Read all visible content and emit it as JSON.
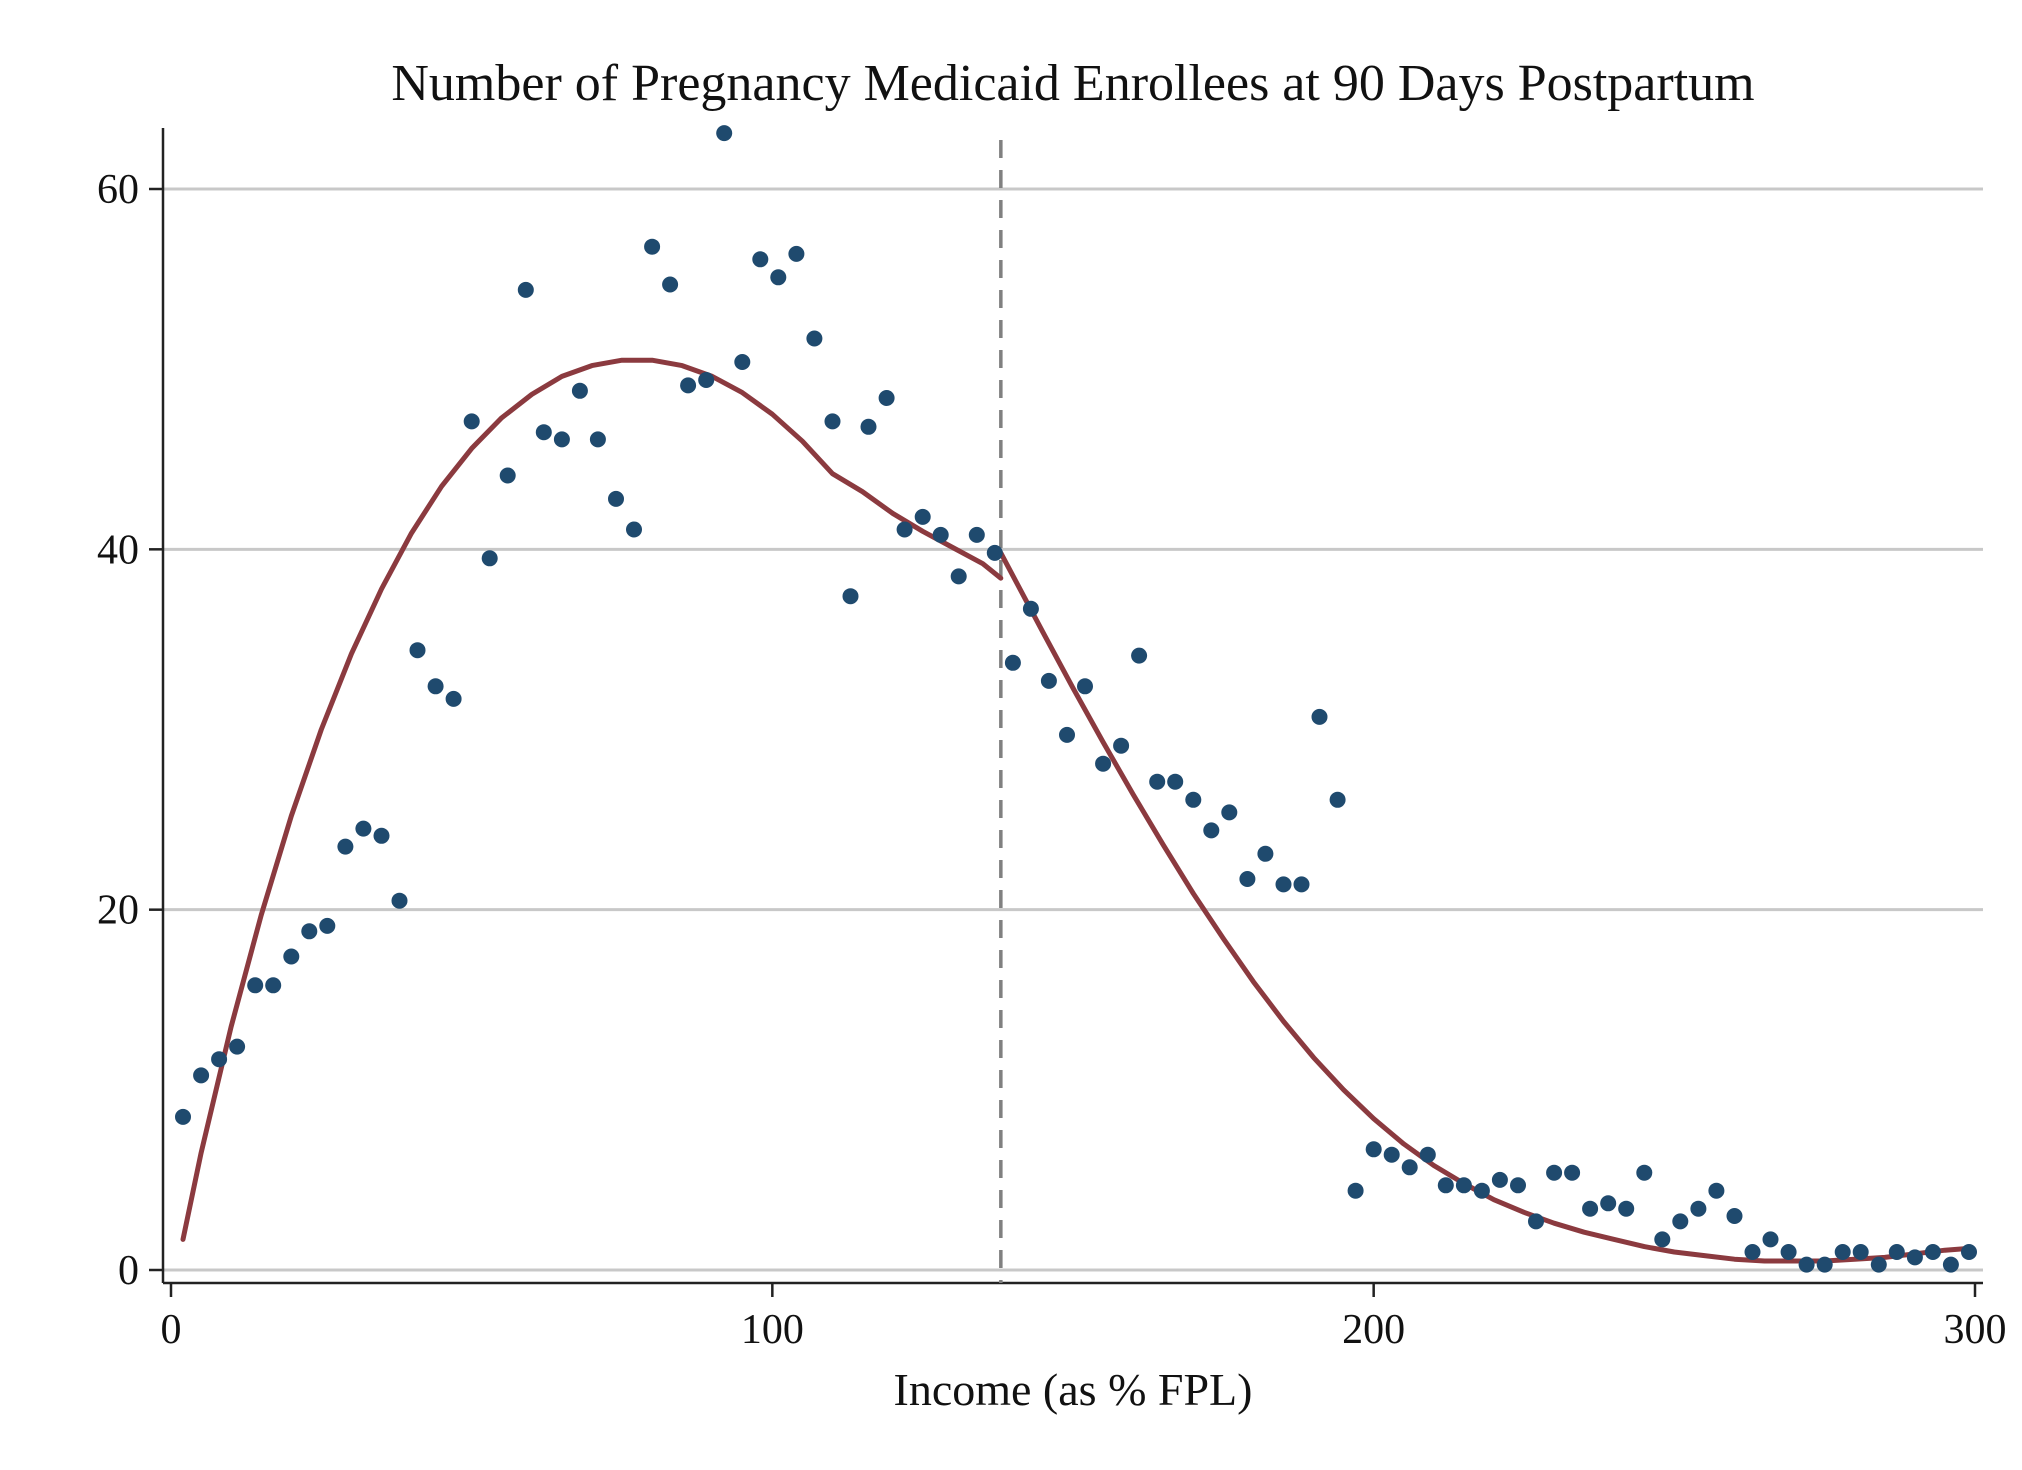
{
  "chart_data": {
    "type": "scatter",
    "title": "Number of Pregnancy Medicaid Enrollees at 90 Days Postpartum",
    "xlabel": "Income (as % FPL)",
    "ylabel": "",
    "xlim": [
      0,
      300
    ],
    "ylim": [
      0,
      60
    ],
    "x_ticks": [
      0,
      100,
      200,
      300
    ],
    "y_ticks": [
      0,
      20,
      40,
      60
    ],
    "x_tick_labels": [
      "0",
      "100",
      "200",
      "300"
    ],
    "y_tick_labels": [
      "0",
      "20",
      "40",
      "60"
    ],
    "grid": "horizontal",
    "legend": "none",
    "threshold_x": 138,
    "colors": {
      "points": "#1f4a6e",
      "fit": "#8b3a3f",
      "threshold": "#808080",
      "grid": "#c8c8c8",
      "axis": "#222222"
    },
    "series": [
      {
        "kind": "points",
        "x": [
          2,
          5,
          8,
          11,
          14,
          17,
          20,
          23,
          26,
          29,
          32,
          35,
          38,
          41,
          44,
          47,
          50,
          53,
          56,
          59,
          62,
          65,
          68,
          71,
          74,
          77,
          80,
          83,
          86,
          89,
          92,
          95,
          98,
          101,
          104,
          107,
          110,
          113,
          116,
          119,
          122,
          125,
          128,
          131,
          134,
          137,
          140,
          143,
          146,
          149,
          152,
          155,
          158,
          161,
          164,
          167,
          170,
          173,
          176,
          179,
          182,
          185,
          188,
          191,
          194,
          197,
          200,
          203,
          206,
          209,
          212,
          215,
          218,
          221,
          224,
          227,
          230,
          233,
          236,
          239,
          242,
          245,
          248,
          251,
          254,
          257,
          260,
          263,
          266,
          269,
          272,
          275,
          278,
          281,
          284,
          287,
          290,
          293,
          296,
          299
        ],
        "y": [
          8.5,
          10.8,
          11.7,
          12.4,
          15.8,
          15.8,
          17.4,
          18.8,
          19.1,
          23.5,
          24.5,
          24.1,
          20.5,
          34.4,
          32.4,
          31.7,
          47.1,
          39.5,
          44.1,
          54.4,
          46.5,
          46.1,
          48.8,
          46.1,
          42.8,
          41.1,
          56.8,
          54.7,
          49.1,
          49.4,
          63.1,
          50.4,
          56.1,
          55.1,
          56.4,
          51.7,
          47.1,
          37.4,
          46.8,
          48.4,
          41.1,
          41.8,
          40.8,
          38.5,
          40.8,
          39.8,
          33.7,
          36.7,
          32.7,
          29.7,
          32.4,
          28.1,
          29.1,
          34.1,
          27.1,
          27.1,
          26.1,
          24.4,
          25.4,
          21.7,
          23.1,
          21.4,
          21.4,
          30.7,
          26.1,
          4.4,
          6.7,
          6.4,
          5.7,
          6.4,
          4.7,
          4.7,
          4.4,
          5.0,
          4.7,
          2.7,
          5.4,
          5.4,
          3.4,
          3.7,
          3.4,
          5.4,
          1.7,
          2.7,
          3.4,
          4.4,
          3.0,
          1.0,
          1.7,
          1.0,
          0.3,
          0.3,
          1.0,
          1.0,
          0.3,
          1.0,
          0.7,
          1.0,
          0.3,
          1.0
        ]
      },
      {
        "kind": "fit-left",
        "x": [
          2,
          5,
          10,
          15,
          20,
          25,
          30,
          35,
          40,
          45,
          50,
          55,
          60,
          65,
          70,
          75,
          80,
          85,
          90,
          95,
          100,
          105,
          110,
          115,
          120,
          125,
          130,
          135,
          138
        ],
        "y": [
          1.7,
          6.5,
          13.5,
          19.7,
          25.2,
          30.0,
          34.2,
          37.8,
          40.9,
          43.5,
          45.6,
          47.3,
          48.6,
          49.6,
          50.2,
          50.5,
          50.5,
          50.2,
          49.6,
          48.7,
          47.5,
          46.0,
          44.2,
          43.2,
          42.0,
          41.0,
          40.1,
          39.2,
          38.4
        ]
      },
      {
        "kind": "fit-right",
        "x": [
          138,
          145,
          150,
          155,
          160,
          165,
          170,
          175,
          180,
          185,
          190,
          195,
          200,
          205,
          210,
          215,
          220,
          225,
          230,
          235,
          240,
          245,
          250,
          255,
          260,
          265,
          270,
          275,
          280,
          285,
          290,
          295,
          299
        ],
        "y": [
          39.8,
          35.4,
          32.3,
          29.3,
          26.4,
          23.6,
          20.9,
          18.4,
          16.0,
          13.8,
          11.8,
          10.0,
          8.4,
          7.0,
          5.8,
          4.8,
          3.9,
          3.2,
          2.6,
          2.1,
          1.7,
          1.3,
          1.0,
          0.8,
          0.6,
          0.5,
          0.5,
          0.5,
          0.6,
          0.7,
          0.9,
          1.1,
          1.2
        ]
      }
    ]
  }
}
